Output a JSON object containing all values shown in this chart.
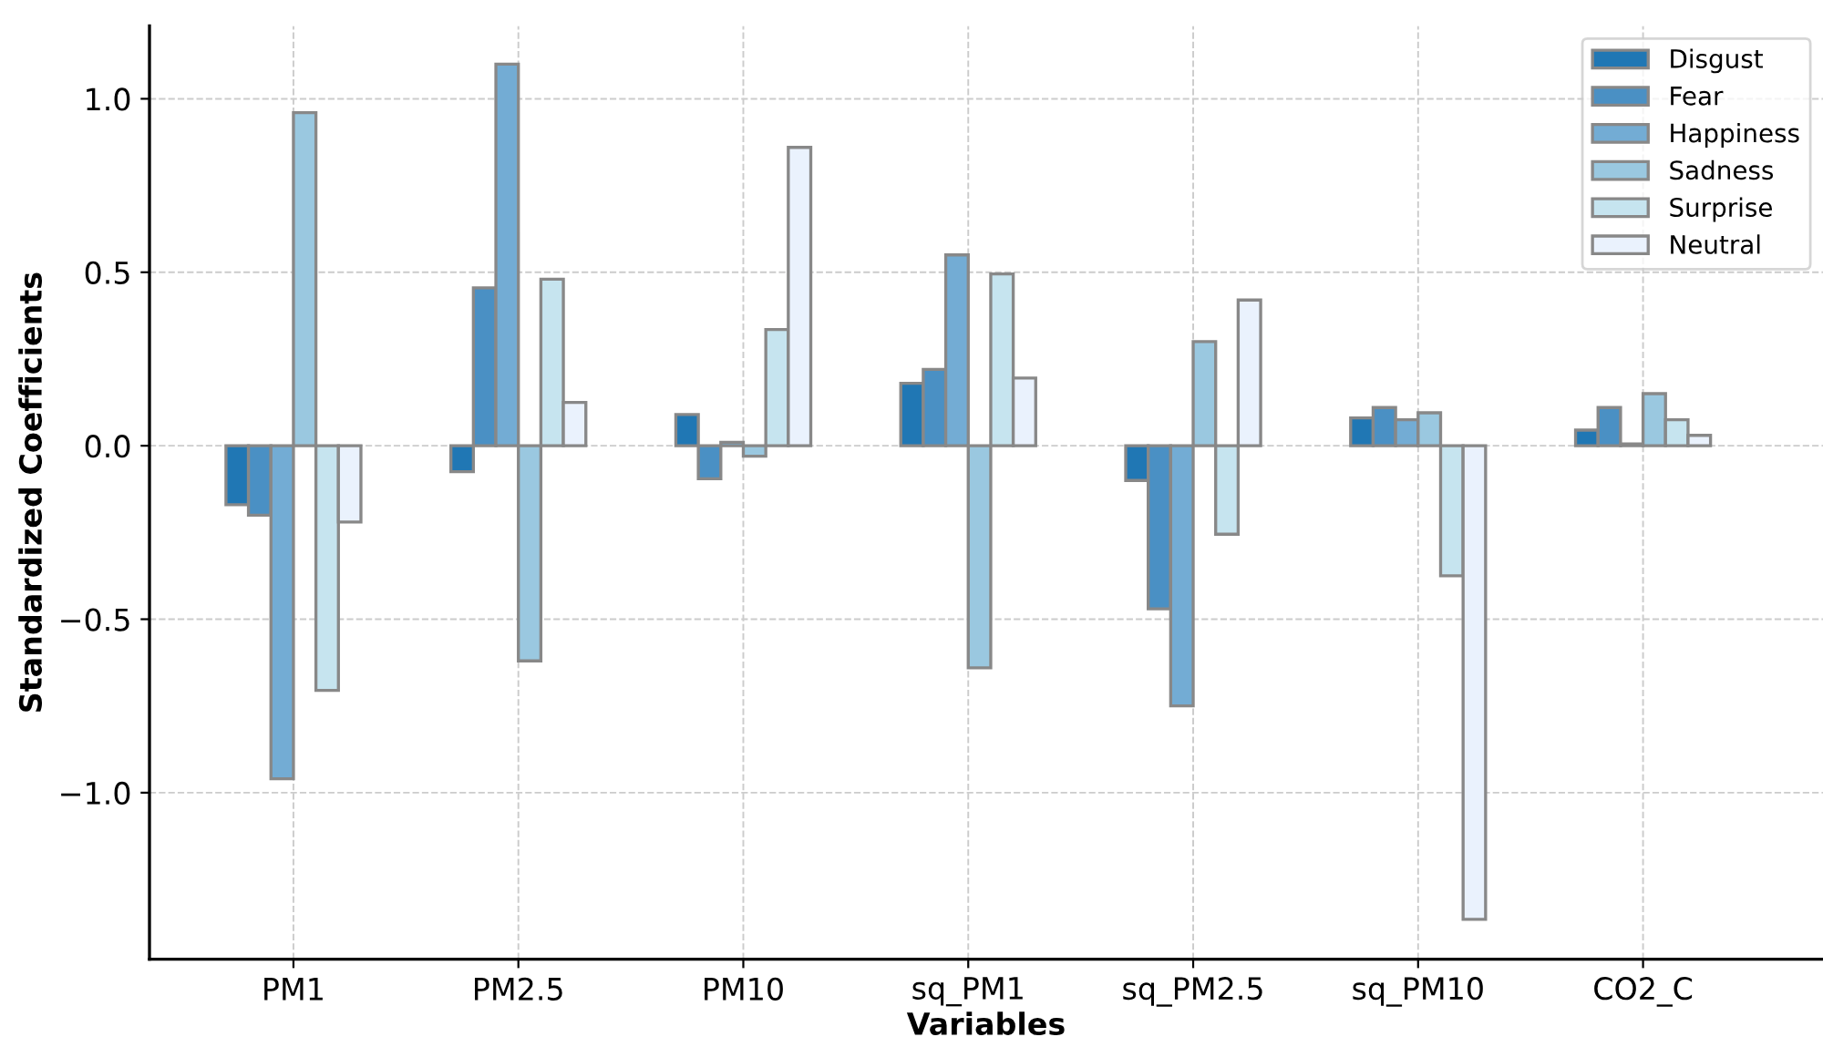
{
  "chart_data": {
    "type": "bar",
    "xlabel": "Variables",
    "ylabel": "Standardized Coefficients",
    "categories": [
      "PM1",
      "PM2.5",
      "PM10",
      "sq_PM1",
      "sq_PM2.5",
      "sq_PM10",
      "CO2_C"
    ],
    "series": [
      {
        "name": "Disgust",
        "color": "#2077b4",
        "values": [
          -0.17,
          -0.075,
          0.09,
          0.18,
          -0.1,
          0.08,
          0.045
        ]
      },
      {
        "name": "Fear",
        "color": "#4a90c4",
        "values": [
          -0.2,
          0.455,
          -0.095,
          0.22,
          -0.47,
          0.11,
          0.11
        ]
      },
      {
        "name": "Happiness",
        "color": "#73acd4",
        "values": [
          -0.96,
          1.1,
          0.01,
          0.55,
          -0.75,
          0.075,
          0.005
        ]
      },
      {
        "name": "Sadness",
        "color": "#9ac8e0",
        "values": [
          0.96,
          -0.62,
          -0.03,
          -0.64,
          0.3,
          0.095,
          0.15
        ]
      },
      {
        "name": "Surprise",
        "color": "#c6e4ef",
        "values": [
          -0.705,
          0.48,
          0.335,
          0.495,
          -0.255,
          -0.375,
          0.075
        ]
      },
      {
        "name": "Neutral",
        "color": "#eaf2fd",
        "values": [
          -0.22,
          0.125,
          0.86,
          0.195,
          0.42,
          -1.365,
          0.03
        ]
      }
    ],
    "ylim": [
      -1.48,
      1.21
    ],
    "yticks": [
      {
        "value": -1.0,
        "label": "−1.0"
      },
      {
        "value": -0.5,
        "label": "−0.5"
      },
      {
        "value": 0.0,
        "label": "0.0"
      },
      {
        "value": 0.5,
        "label": "0.5"
      },
      {
        "value": 1.0,
        "label": "1.0"
      }
    ],
    "grid": true,
    "legend": "top right"
  }
}
